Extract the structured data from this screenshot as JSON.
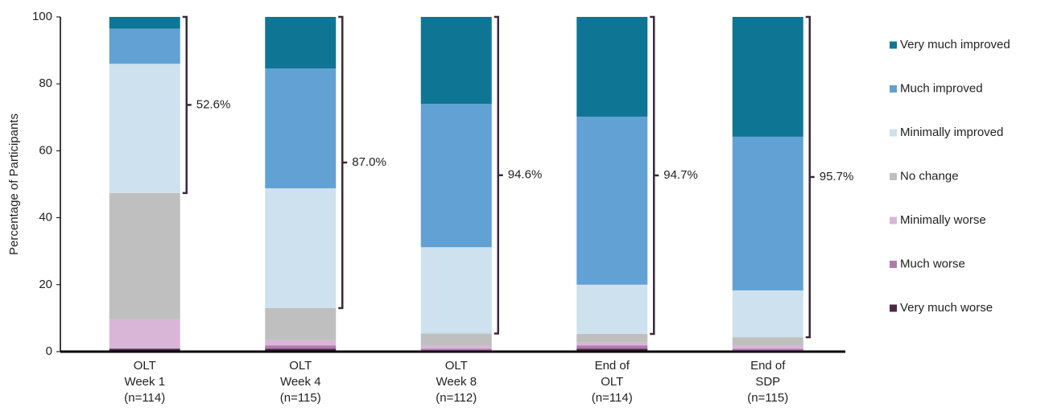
{
  "chart_data": {
    "type": "stacked_bar",
    "ylabel": "Percentage of Participants",
    "categories": [
      [
        "OLT",
        "Week 1",
        "(n=114)"
      ],
      [
        "OLT",
        "Week 4",
        "(n=115)"
      ],
      [
        "OLT",
        "Week 8",
        "(n=112)"
      ],
      [
        "End of",
        "OLT",
        "(n=114)"
      ],
      [
        "End of",
        "SDP",
        "(n=115)"
      ]
    ],
    "series": [
      {
        "name": "Very much improved",
        "color": "#0e7694",
        "values": [
          3.5,
          15.4,
          26.0,
          29.8,
          35.8
        ]
      },
      {
        "name": "Much improved",
        "color": "#62a1d4",
        "values": [
          10.5,
          35.8,
          42.8,
          50.2,
          45.9
        ]
      },
      {
        "name": "Minimally improved",
        "color": "#cde1ee",
        "values": [
          38.6,
          35.8,
          25.8,
          14.7,
          14.0
        ]
      },
      {
        "name": "No change",
        "color": "#bfbfbf",
        "values": [
          37.7,
          9.5,
          3.6,
          2.6,
          2.5
        ]
      },
      {
        "name": "Minimally worse",
        "color": "#d9b6d8",
        "values": [
          8.8,
          1.7,
          0.9,
          0.9,
          0.9
        ]
      },
      {
        "name": "Much worse",
        "color": "#b07ab0",
        "values": [
          0,
          0.9,
          0.9,
          0.9,
          0.9
        ]
      },
      {
        "name": "Very much worse",
        "color": "#4f2a47",
        "values": [
          0.9,
          0.9,
          0,
          0.9,
          0
        ]
      }
    ],
    "brackets": [
      {
        "value": 52.6,
        "label": "52.6%"
      },
      {
        "value": 87.0,
        "label": "87.0%"
      },
      {
        "value": 94.6,
        "label": "94.6%"
      },
      {
        "value": 94.7,
        "label": "94.7%"
      },
      {
        "value": 95.7,
        "label": "95.7%"
      }
    ],
    "ylim": [
      0,
      100
    ],
    "yticks": [
      0,
      20,
      40,
      60,
      80,
      100
    ]
  }
}
